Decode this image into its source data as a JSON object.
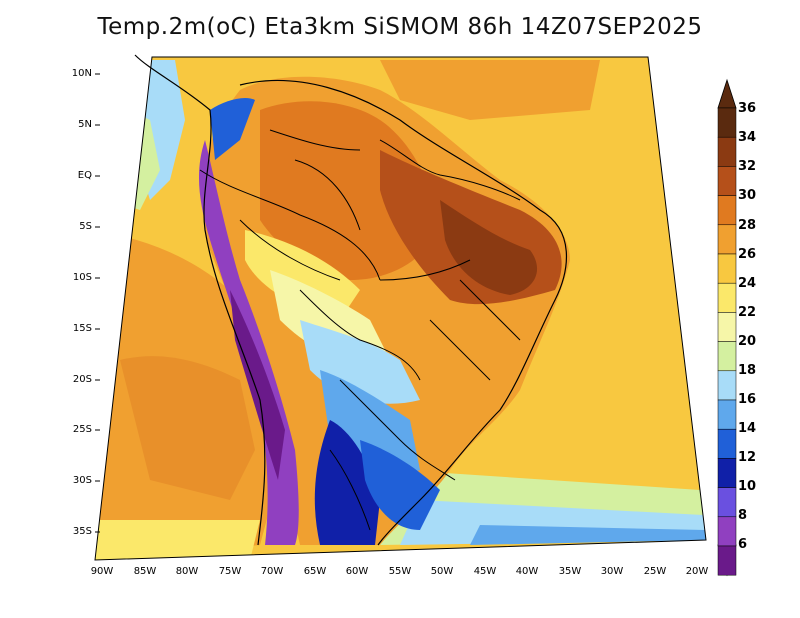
{
  "title": "Temp.2m(oC) Eta3km SiSMOM 86h 14Z07SEP2025",
  "lat_ticks": [
    "10N",
    "5N",
    "EQ",
    "5S",
    "10S",
    "15S",
    "20S",
    "25S",
    "30S",
    "35S"
  ],
  "lon_ticks": [
    "90W",
    "85W",
    "80W",
    "75W",
    "70W",
    "65W",
    "60W",
    "55W",
    "50W",
    "45W",
    "40W",
    "35W",
    "30W",
    "25W",
    "20W"
  ],
  "colorbar": {
    "labels": [
      "36",
      "34",
      "32",
      "30",
      "28",
      "26",
      "24",
      "22",
      "20",
      "18",
      "16",
      "14",
      "12",
      "10",
      "8",
      "6"
    ],
    "colors": [
      "#5a2a0f",
      "#8b3a12",
      "#b5501a",
      "#e07a20",
      "#f0a030",
      "#f8c840",
      "#fbe86a",
      "#f6f6a8",
      "#d4f0a0",
      "#a8dcf8",
      "#5fa8ec",
      "#2060d8",
      "#1020a8",
      "#6a50e0",
      "#9040c0",
      "#6a1a8a"
    ]
  }
}
